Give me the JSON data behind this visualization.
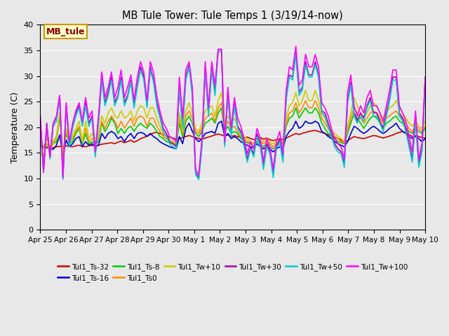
{
  "title": "MB Tule Tower: Tule Temps 1 (3/19/14-now)",
  "ylabel": "Temperature (C)",
  "ylim": [
    0,
    40
  ],
  "yticks": [
    0,
    5,
    10,
    15,
    20,
    25,
    30,
    35,
    40
  ],
  "bg_color": "#e8e8e8",
  "grid_color": "#ffffff",
  "x_labels": [
    "Apr 25",
    "Apr 26",
    "Apr 27",
    "Apr 28",
    "Apr 29",
    "Apr 30",
    "May 1",
    "May 2",
    "May 3",
    "May 4",
    "May 5",
    "May 6",
    "May 7",
    "May 8",
    "May 9",
    "May 10"
  ],
  "legend_label": "MB_tule",
  "legend_bg": "#ffffcc",
  "legend_border": "#cc9900",
  "legend_text_color": "#880000",
  "series_order": [
    "Tul1_Ts-32",
    "Tul1_Ts-16",
    "Tul1_Ts-8",
    "Tul1_Ts0",
    "Tul1_Tw+10",
    "Tul1_Tw+30",
    "Tul1_Tw+50",
    "Tul1_Tw+100"
  ],
  "series": {
    "Tul1_Ts-32": {
      "color": "#cc0000",
      "lw": 1.2,
      "data": [
        16.5,
        16.3,
        16.2,
        16.1,
        16.0,
        16.2,
        16.3,
        16.1,
        16.4,
        16.3,
        16.2,
        16.4,
        16.5,
        16.3,
        16.2,
        16.4,
        16.5,
        16.3,
        16.5,
        16.7,
        16.8,
        16.9,
        17.0,
        16.8,
        17.1,
        17.3,
        17.0,
        17.2,
        17.5,
        17.1,
        17.4,
        17.8,
        18.0,
        18.3,
        18.6,
        18.9,
        19.0,
        18.8,
        18.6,
        18.3,
        18.1,
        17.9,
        17.7,
        17.8,
        18.0,
        18.2,
        18.4,
        18.2,
        18.0,
        17.8,
        17.7,
        17.9,
        18.1,
        18.3,
        18.5,
        18.7,
        18.5,
        18.3,
        18.5,
        18.2,
        18.4,
        18.2,
        18.0,
        17.9,
        18.1,
        17.8,
        17.6,
        17.8,
        18.0,
        17.7,
        17.9,
        17.6,
        17.4,
        17.6,
        17.8,
        17.6,
        17.9,
        18.2,
        18.5,
        18.8,
        18.6,
        18.8,
        19.0,
        19.2,
        19.3,
        19.4,
        19.2,
        19.0,
        18.8,
        18.5,
        18.2,
        18.0,
        17.8,
        17.5,
        17.2,
        17.4,
        17.8,
        18.2,
        18.0,
        17.9,
        17.8,
        18.0,
        18.2,
        18.4,
        18.3,
        18.1,
        17.9,
        18.1,
        18.3,
        18.5,
        18.8,
        19.0,
        19.2,
        18.9,
        18.6,
        18.2,
        18.4,
        18.2,
        18.0,
        17.9
      ]
    },
    "Tul1_Ts-16": {
      "color": "#0000cc",
      "lw": 1.2,
      "data": [
        16.5,
        16.2,
        16.0,
        15.9,
        15.7,
        16.5,
        18.5,
        14.5,
        17.5,
        16.2,
        16.8,
        17.8,
        18.2,
        16.2,
        17.2,
        16.5,
        16.8,
        16.2,
        16.5,
        18.8,
        17.8,
        18.8,
        19.2,
        18.8,
        17.8,
        18.2,
        17.2,
        18.2,
        18.8,
        17.8,
        18.8,
        19.0,
        18.8,
        18.2,
        18.8,
        18.2,
        17.8,
        17.2,
        16.8,
        16.5,
        16.2,
        16.0,
        15.8,
        18.2,
        16.8,
        19.8,
        20.8,
        19.2,
        17.8,
        17.2,
        17.8,
        18.8,
        19.0,
        19.2,
        18.8,
        20.8,
        21.2,
        18.2,
        18.8,
        17.8,
        18.2,
        17.8,
        17.2,
        16.8,
        16.5,
        16.2,
        16.0,
        16.8,
        16.2,
        15.8,
        16.2,
        15.8,
        15.2,
        15.8,
        16.2,
        15.8,
        18.2,
        19.2,
        19.8,
        21.2,
        19.8,
        20.2,
        21.2,
        20.8,
        20.8,
        21.2,
        20.8,
        19.2,
        18.8,
        18.2,
        17.8,
        17.2,
        16.8,
        16.5,
        16.2,
        17.2,
        18.8,
        20.2,
        19.8,
        19.2,
        18.8,
        19.2,
        19.8,
        20.2,
        19.8,
        19.2,
        18.8,
        19.2,
        19.8,
        20.2,
        20.8,
        19.8,
        19.2,
        18.8,
        18.2,
        17.8,
        18.2,
        17.8,
        17.2,
        17.8
      ]
    },
    "Tul1_Ts-8": {
      "color": "#00cc00",
      "lw": 1.2,
      "data": [
        16.5,
        16.2,
        16.8,
        16.2,
        16.8,
        17.2,
        22.2,
        14.8,
        18.8,
        16.8,
        17.2,
        18.8,
        19.8,
        16.8,
        18.8,
        16.8,
        17.2,
        16.8,
        17.2,
        20.8,
        19.2,
        20.2,
        21.8,
        20.8,
        18.8,
        19.8,
        18.8,
        19.8,
        20.2,
        19.2,
        20.2,
        20.8,
        20.2,
        19.8,
        20.8,
        20.2,
        19.2,
        18.2,
        17.8,
        17.2,
        17.0,
        16.8,
        16.5,
        20.8,
        18.2,
        21.2,
        22.2,
        20.8,
        18.8,
        18.2,
        19.2,
        20.8,
        21.2,
        21.8,
        20.8,
        22.8,
        23.8,
        19.2,
        20.2,
        18.8,
        19.2,
        18.8,
        17.8,
        17.2,
        17.0,
        16.8,
        16.2,
        17.2,
        16.8,
        16.2,
        16.8,
        16.2,
        15.8,
        16.2,
        16.8,
        16.2,
        20.2,
        21.8,
        22.2,
        23.8,
        21.8,
        22.8,
        23.8,
        22.8,
        22.8,
        23.8,
        22.8,
        20.8,
        19.8,
        18.8,
        18.2,
        17.8,
        17.2,
        17.0,
        16.8,
        18.8,
        20.8,
        22.8,
        21.8,
        20.8,
        19.8,
        20.8,
        21.8,
        22.2,
        21.8,
        20.8,
        19.8,
        20.8,
        21.2,
        21.8,
        22.2,
        21.2,
        20.8,
        19.8,
        19.2,
        18.8,
        19.8,
        19.2,
        18.8,
        19.8
      ]
    },
    "Tul1_Ts0": {
      "color": "#ff8800",
      "lw": 1.2,
      "data": [
        16.2,
        15.8,
        17.8,
        16.2,
        17.2,
        18.2,
        22.8,
        14.8,
        19.2,
        17.2,
        17.8,
        19.2,
        20.2,
        17.2,
        19.8,
        17.2,
        17.8,
        17.2,
        17.8,
        21.2,
        19.8,
        21.2,
        22.2,
        21.2,
        19.8,
        21.2,
        19.8,
        20.8,
        21.8,
        20.2,
        21.8,
        22.2,
        21.8,
        20.2,
        21.8,
        21.8,
        20.2,
        19.2,
        18.2,
        17.8,
        17.2,
        17.0,
        16.8,
        21.8,
        18.8,
        22.2,
        23.2,
        21.8,
        19.2,
        18.8,
        19.8,
        21.8,
        22.2,
        22.8,
        21.2,
        23.8,
        24.8,
        19.8,
        21.2,
        19.8,
        20.2,
        19.2,
        18.2,
        17.8,
        17.2,
        17.0,
        16.8,
        17.8,
        17.2,
        16.8,
        17.2,
        16.8,
        16.2,
        16.8,
        17.2,
        16.8,
        20.8,
        22.8,
        23.2,
        24.8,
        22.8,
        23.8,
        25.2,
        23.8,
        23.8,
        25.2,
        23.8,
        21.8,
        20.8,
        19.8,
        18.8,
        18.2,
        17.8,
        17.2,
        17.0,
        19.2,
        21.8,
        23.8,
        22.8,
        21.8,
        20.8,
        21.8,
        22.8,
        23.2,
        22.8,
        21.8,
        20.8,
        21.8,
        22.2,
        22.8,
        23.2,
        22.2,
        21.8,
        20.8,
        19.8,
        19.2,
        20.2,
        19.8,
        19.2,
        20.2
      ]
    },
    "Tul1_Tw+10": {
      "color": "#cccc00",
      "lw": 1.2,
      "data": [
        14.8,
        14.5,
        16.8,
        15.2,
        16.8,
        17.8,
        22.8,
        14.2,
        19.8,
        17.8,
        18.2,
        19.8,
        21.2,
        17.2,
        21.2,
        17.8,
        18.8,
        17.8,
        18.2,
        22.2,
        20.8,
        22.8,
        23.8,
        22.2,
        21.8,
        23.2,
        21.8,
        22.2,
        23.2,
        21.2,
        23.2,
        24.2,
        23.8,
        21.8,
        23.8,
        23.8,
        21.8,
        20.2,
        18.8,
        18.2,
        17.8,
        17.2,
        16.8,
        22.8,
        19.2,
        23.2,
        24.8,
        22.8,
        19.8,
        19.2,
        20.8,
        23.2,
        23.8,
        24.2,
        22.2,
        25.2,
        26.8,
        20.8,
        22.2,
        20.8,
        21.8,
        20.2,
        18.8,
        18.2,
        17.8,
        17.2,
        16.8,
        18.2,
        17.8,
        17.2,
        17.8,
        17.2,
        16.8,
        17.2,
        17.8,
        17.2,
        21.8,
        24.2,
        24.8,
        26.8,
        24.2,
        25.2,
        27.2,
        25.2,
        25.2,
        27.2,
        25.2,
        22.8,
        21.8,
        20.2,
        19.2,
        18.8,
        18.2,
        17.8,
        17.2,
        20.2,
        22.8,
        25.8,
        24.2,
        22.8,
        21.8,
        22.8,
        24.2,
        24.8,
        24.2,
        22.8,
        21.8,
        22.8,
        23.8,
        24.2,
        25.2,
        23.8,
        22.8,
        21.8,
        20.8,
        20.2,
        21.2,
        20.2,
        19.8,
        21.2
      ]
    },
    "Tul1_Tw+30": {
      "color": "#aa00aa",
      "lw": 1.2,
      "data": [
        22.2,
        11.8,
        20.8,
        14.2,
        20.8,
        21.8,
        26.2,
        10.2,
        24.2,
        16.8,
        20.2,
        22.8,
        24.2,
        20.8,
        24.8,
        20.8,
        22.2,
        14.8,
        21.2,
        29.8,
        24.8,
        26.8,
        29.8,
        24.8,
        26.2,
        29.8,
        24.8,
        26.2,
        29.2,
        24.2,
        28.2,
        31.8,
        29.8,
        24.2,
        31.8,
        29.2,
        24.8,
        22.2,
        19.8,
        18.8,
        17.2,
        16.8,
        16.2,
        28.2,
        20.2,
        29.8,
        32.2,
        26.8,
        11.2,
        10.2,
        16.8,
        31.8,
        22.8,
        31.8,
        26.8,
        35.2,
        35.2,
        16.8,
        26.8,
        18.8,
        24.8,
        20.2,
        19.2,
        16.8,
        13.8,
        16.2,
        14.8,
        18.8,
        16.8,
        12.2,
        16.8,
        15.2,
        10.8,
        16.2,
        17.8,
        13.8,
        25.8,
        30.2,
        29.8,
        34.8,
        26.8,
        27.8,
        32.8,
        30.2,
        30.2,
        32.8,
        30.2,
        23.2,
        22.8,
        20.8,
        18.8,
        16.8,
        15.8,
        15.2,
        12.8,
        25.2,
        28.8,
        22.8,
        21.2,
        22.8,
        21.8,
        24.2,
        25.8,
        22.8,
        22.8,
        21.2,
        19.8,
        22.8,
        25.8,
        29.8,
        29.8,
        22.8,
        21.8,
        19.8,
        16.8,
        13.8,
        21.8,
        12.8,
        15.8,
        29.8
      ]
    },
    "Tul1_Tw+50": {
      "color": "#00cccc",
      "lw": 1.2,
      "data": [
        19.8,
        11.2,
        20.2,
        13.8,
        20.2,
        21.2,
        25.8,
        9.8,
        23.8,
        16.2,
        19.8,
        22.2,
        23.8,
        20.2,
        24.2,
        20.2,
        21.8,
        14.2,
        20.8,
        29.2,
        24.2,
        26.2,
        29.2,
        24.2,
        25.8,
        29.2,
        24.2,
        25.8,
        28.8,
        23.8,
        27.8,
        31.2,
        29.2,
        23.8,
        31.2,
        28.8,
        24.2,
        21.8,
        19.2,
        18.2,
        16.8,
        16.2,
        15.8,
        27.8,
        19.8,
        29.2,
        31.8,
        26.2,
        10.8,
        9.8,
        16.2,
        31.2,
        22.2,
        31.2,
        26.2,
        34.8,
        34.8,
        16.2,
        26.2,
        18.2,
        24.2,
        19.8,
        18.8,
        16.2,
        13.2,
        15.8,
        14.2,
        18.2,
        16.2,
        11.8,
        16.2,
        14.8,
        10.2,
        15.8,
        17.2,
        13.2,
        25.2,
        29.8,
        29.2,
        34.2,
        26.2,
        27.2,
        32.2,
        29.8,
        29.8,
        32.2,
        29.8,
        22.8,
        22.2,
        20.2,
        18.2,
        16.2,
        15.2,
        14.8,
        12.2,
        24.8,
        28.2,
        22.2,
        20.8,
        22.2,
        21.2,
        23.8,
        25.2,
        22.2,
        22.2,
        20.8,
        19.2,
        22.2,
        25.2,
        29.2,
        29.2,
        22.2,
        21.2,
        19.2,
        16.2,
        13.2,
        21.2,
        12.2,
        15.2,
        29.2
      ]
    },
    "Tul1_Tw+100": {
      "color": "#ff00ff",
      "lw": 1.2,
      "data": [
        21.8,
        11.2,
        20.2,
        14.2,
        20.8,
        22.2,
        26.2,
        10.2,
        24.8,
        17.2,
        20.8,
        23.2,
        24.8,
        21.2,
        25.8,
        21.8,
        23.2,
        15.2,
        22.2,
        30.8,
        25.8,
        27.8,
        30.8,
        25.8,
        27.8,
        31.2,
        25.8,
        27.8,
        30.2,
        25.2,
        29.8,
        32.8,
        30.8,
        25.2,
        32.8,
        30.8,
        26.2,
        23.2,
        20.8,
        19.8,
        18.2,
        17.8,
        17.2,
        29.8,
        21.8,
        31.2,
        32.8,
        27.8,
        11.8,
        10.8,
        17.8,
        32.8,
        23.8,
        32.8,
        28.2,
        35.2,
        35.2,
        17.2,
        27.8,
        19.8,
        25.8,
        21.8,
        20.2,
        17.8,
        14.8,
        17.2,
        15.8,
        19.8,
        17.8,
        13.2,
        17.8,
        16.2,
        11.8,
        17.2,
        19.2,
        14.8,
        27.2,
        31.8,
        31.2,
        35.8,
        28.2,
        29.2,
        34.2,
        31.8,
        31.8,
        34.2,
        31.8,
        24.8,
        23.8,
        22.2,
        19.8,
        17.8,
        16.8,
        16.2,
        13.8,
        26.8,
        30.2,
        24.2,
        22.2,
        24.2,
        22.8,
        25.8,
        27.2,
        24.2,
        24.2,
        22.8,
        21.2,
        24.2,
        27.2,
        31.2,
        31.2,
        24.2,
        22.8,
        21.2,
        18.2,
        15.2,
        23.2,
        13.8,
        16.8,
        29.8
      ]
    }
  }
}
